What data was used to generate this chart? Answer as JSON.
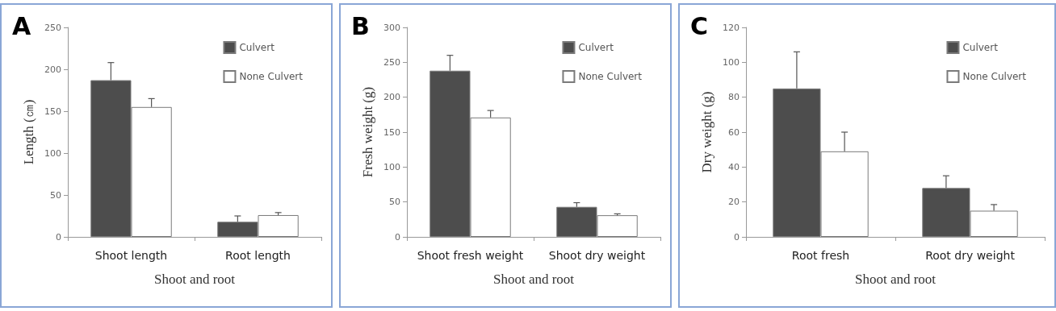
{
  "chart_data": [
    {
      "type": "bar",
      "title": "A",
      "xlabel": "Shoot and root",
      "ylabel": "Length (㎝)",
      "categories": [
        "Shoot length",
        "Root length"
      ],
      "ylim": [
        0,
        250
      ],
      "yticks": [
        0,
        50,
        100,
        150,
        200,
        250
      ],
      "legend": "top right",
      "series": [
        {
          "name": "Culvert",
          "color": "#4d4d4d",
          "values": [
            187,
            18
          ],
          "errors": [
            [
              187,
              208
            ],
            [
              18,
              25
            ]
          ]
        },
        {
          "name": "None Culvert",
          "color": "#ffffff",
          "values": [
            155,
            26
          ],
          "errors": [
            [
              155,
              165
            ],
            [
              26,
              29
            ]
          ]
        }
      ]
    },
    {
      "type": "bar",
      "title": "B",
      "xlabel": "Shoot and root",
      "ylabel": "Fresh weight (g)",
      "categories": [
        "Shoot fresh weight",
        "Shoot dry weight"
      ],
      "ylim": [
        0,
        300
      ],
      "yticks": [
        0,
        50,
        100,
        150,
        200,
        250,
        300
      ],
      "legend": "top right",
      "series": [
        {
          "name": "Culvert",
          "color": "#4d4d4d",
          "values": [
            238,
            43
          ],
          "errors": [
            [
              238,
              260
            ],
            [
              43,
              49
            ]
          ]
        },
        {
          "name": "None Culvert",
          "color": "#ffffff",
          "values": [
            171,
            31
          ],
          "errors": [
            [
              171,
              181
            ],
            [
              31,
              33
            ]
          ]
        }
      ]
    },
    {
      "type": "bar",
      "title": "C",
      "xlabel": "Shoot and root",
      "ylabel": "Dry weight (g)",
      "categories": [
        "Root fresh",
        "Root dry weight"
      ],
      "ylim": [
        0,
        120
      ],
      "yticks": [
        0,
        20,
        40,
        60,
        80,
        100,
        120
      ],
      "legend": "top right",
      "series": [
        {
          "name": "Culvert",
          "color": "#4d4d4d",
          "values": [
            85,
            28
          ],
          "errors": [
            [
              85,
              106
            ],
            [
              28,
              35
            ]
          ]
        },
        {
          "name": "None Culvert",
          "color": "#ffffff",
          "values": [
            49,
            15
          ],
          "errors": [
            [
              49,
              60
            ],
            [
              15,
              18.5
            ]
          ]
        }
      ]
    }
  ]
}
